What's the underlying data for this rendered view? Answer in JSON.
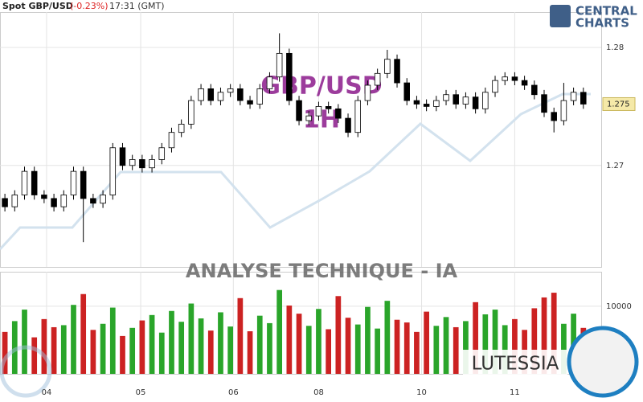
{
  "header": {
    "symbol": "Spot GBP/USD",
    "change": "(-0.23%)",
    "time": "17:31 (GMT)"
  },
  "logo": {
    "line1": "CENTRAL",
    "line2": "CHARTS"
  },
  "watermark": {
    "pair": "GBP/USD",
    "timeframe": "1H",
    "caption": "ANALYSE TECHNIQUE - IA",
    "brand": "LUTESSIA"
  },
  "chart_data": {
    "type": "candlestick",
    "xlim": [
      -0.5,
      60
    ],
    "xticks": [
      {
        "value": 4.25,
        "label": "04"
      },
      {
        "value": 13.85,
        "label": "05"
      },
      {
        "value": 23.3,
        "label": "06"
      },
      {
        "value": 32,
        "label": "08"
      },
      {
        "value": 42.5,
        "label": "10"
      },
      {
        "value": 52,
        "label": "11"
      }
    ],
    "ylim": [
      1.2614,
      1.283
    ],
    "yticks": [
      1.27,
      1.28
    ],
    "last_price": {
      "value": 1.2752,
      "label": "1.275"
    },
    "up_color": "#ffffff",
    "down_color": "#000000",
    "grid": true,
    "open": [
      1.2672,
      1.2665,
      1.2675,
      1.2695,
      1.2675,
      1.2672,
      1.2665,
      1.2675,
      1.2695,
      1.2672,
      1.2668,
      1.2675,
      1.2715,
      1.27,
      1.2705,
      1.2698,
      1.2705,
      1.2715,
      1.2728,
      1.2735,
      1.2755,
      1.2765,
      1.2755,
      1.2762,
      1.2765,
      1.2755,
      1.2752,
      1.2765,
      1.2775,
      1.2795,
      1.2755,
      1.2738,
      1.2742,
      1.275,
      1.2748,
      1.274,
      1.2728,
      1.2755,
      1.2768,
      1.2778,
      1.279,
      1.277,
      1.2755,
      1.2752,
      1.275,
      1.2755,
      1.276,
      1.2752,
      1.2758,
      1.2748,
      1.2762,
      1.2772,
      1.2775,
      1.2772,
      1.2768,
      1.276,
      1.2745,
      1.2738,
      1.2755,
      1.2762
    ],
    "high": [
      1.2676,
      1.2679,
      1.2699,
      1.2699,
      1.2679,
      1.2676,
      1.2679,
      1.2699,
      1.2699,
      1.2676,
      1.2679,
      1.2719,
      1.2719,
      1.2709,
      1.2709,
      1.2709,
      1.2719,
      1.2732,
      1.2739,
      1.2759,
      1.2769,
      1.2769,
      1.2766,
      1.2769,
      1.2769,
      1.2759,
      1.2769,
      1.2779,
      1.2812,
      1.2799,
      1.2759,
      1.2746,
      1.2754,
      1.2754,
      1.2752,
      1.2744,
      1.2759,
      1.2772,
      1.2782,
      1.2798,
      1.2794,
      1.2774,
      1.2759,
      1.2756,
      1.2759,
      1.2764,
      1.2764,
      1.2762,
      1.2762,
      1.2766,
      1.2776,
      1.2779,
      1.2779,
      1.2776,
      1.2772,
      1.2764,
      1.2749,
      1.277,
      1.2766,
      1.2766
    ],
    "low": [
      1.2661,
      1.2661,
      1.2671,
      1.2671,
      1.2668,
      1.2661,
      1.2661,
      1.2671,
      1.2635,
      1.2664,
      1.2664,
      1.2671,
      1.2696,
      1.2696,
      1.2694,
      1.2694,
      1.2701,
      1.2711,
      1.2724,
      1.2731,
      1.2751,
      1.2751,
      1.2751,
      1.2758,
      1.2751,
      1.2748,
      1.2748,
      1.2761,
      1.2771,
      1.2751,
      1.2734,
      1.2734,
      1.2738,
      1.2744,
      1.2736,
      1.2724,
      1.2724,
      1.2751,
      1.2764,
      1.2774,
      1.2766,
      1.2751,
      1.2748,
      1.2746,
      1.2746,
      1.2751,
      1.2748,
      1.2748,
      1.2744,
      1.2744,
      1.2758,
      1.2768,
      1.2768,
      1.2764,
      1.2756,
      1.2741,
      1.2728,
      1.2734,
      1.2751,
      1.2748
    ],
    "close": [
      1.2665,
      1.2675,
      1.2695,
      1.2675,
      1.2672,
      1.2665,
      1.2675,
      1.2695,
      1.2672,
      1.2668,
      1.2675,
      1.2715,
      1.27,
      1.2705,
      1.2698,
      1.2705,
      1.2715,
      1.2728,
      1.2735,
      1.2755,
      1.2765,
      1.2755,
      1.2762,
      1.2765,
      1.2755,
      1.2752,
      1.2765,
      1.2775,
      1.2795,
      1.2755,
      1.2738,
      1.2742,
      1.275,
      1.2748,
      1.274,
      1.2728,
      1.2755,
      1.2768,
      1.2778,
      1.279,
      1.277,
      1.2755,
      1.2752,
      1.275,
      1.2755,
      1.276,
      1.2752,
      1.2758,
      1.2748,
      1.2762,
      1.2772,
      1.2775,
      1.2772,
      1.2768,
      1.276,
      1.2745,
      1.2738,
      1.2755,
      1.2762,
      1.2752
    ],
    "volume": {
      "ylim": [
        0,
        15100
      ],
      "yticks": [
        10000
      ],
      "up_color": "#2aa52a",
      "down_color": "#cc2222",
      "values": [
        6200,
        7800,
        9500,
        5400,
        8100,
        6900,
        7200,
        10200,
        11800,
        6500,
        7400,
        9800,
        5600,
        6800,
        7900,
        8700,
        6100,
        9300,
        7700,
        10400,
        8200,
        6400,
        9100,
        7000,
        11200,
        6300,
        8600,
        7500,
        12400,
        10100,
        8900,
        7100,
        9600,
        6600,
        11500,
        8300,
        7300,
        9900,
        6700,
        10800,
        8000,
        7600,
        6200,
        9200,
        7100,
        8400,
        6900,
        7800,
        10600,
        8800,
        9500,
        7200,
        8100,
        6500,
        9700,
        11300,
        12000,
        7400,
        8900,
        6800
      ]
    }
  }
}
